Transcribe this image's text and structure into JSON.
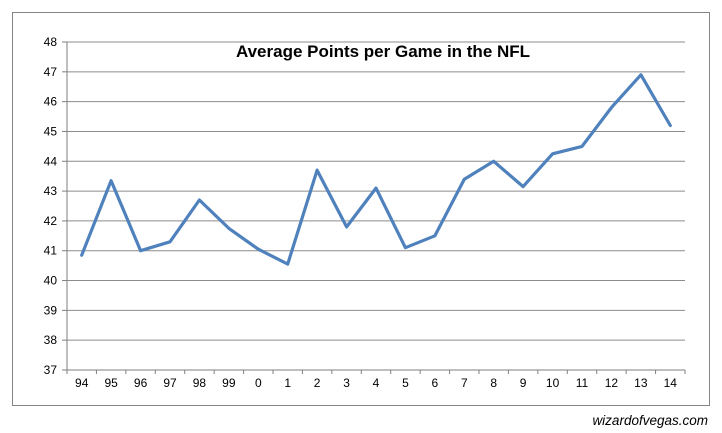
{
  "chart_data": {
    "type": "line",
    "title": "Average Points per Game in the NFL",
    "categories": [
      "94",
      "95",
      "96",
      "97",
      "98",
      "99",
      "0",
      "1",
      "2",
      "3",
      "4",
      "5",
      "6",
      "7",
      "8",
      "9",
      "10",
      "11",
      "12",
      "13",
      "14"
    ],
    "series": [
      {
        "name": "Average points per game",
        "values": [
          40.85,
          43.35,
          41.0,
          41.3,
          42.7,
          41.75,
          41.05,
          40.55,
          43.7,
          41.8,
          43.1,
          41.1,
          41.5,
          43.4,
          44.0,
          43.15,
          44.25,
          44.5,
          45.8,
          46.9,
          45.2
        ]
      }
    ],
    "xlabel": "",
    "ylabel": "",
    "ylim": [
      37,
      48
    ],
    "ytick_step": 1,
    "grid": true,
    "legend_position": "none",
    "colors": {
      "line": "#4F81BD",
      "gridline": "#8C8C8C",
      "axis": "#7F7F7F",
      "border": "#848484",
      "text": "#000000",
      "background": "#FFFFFF"
    }
  },
  "watermark": "wizardofvegas.com"
}
